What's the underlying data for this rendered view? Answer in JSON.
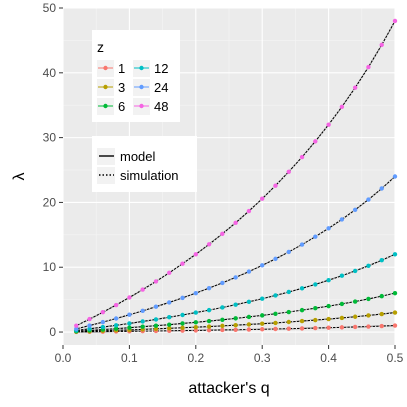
{
  "chart_data": {
    "type": "line",
    "xlabel": "attacker's q",
    "ylabel": "λ",
    "xlim": [
      0,
      0.5
    ],
    "ylim": [
      -2,
      50
    ],
    "x_ticks": [
      0.0,
      0.1,
      0.2,
      0.3,
      0.4,
      0.5
    ],
    "x_tick_labels": [
      "0.0",
      "0.1",
      "0.2",
      "0.3",
      "0.4",
      "0.5"
    ],
    "y_ticks": [
      0,
      10,
      20,
      30,
      40,
      50
    ],
    "y_tick_labels": [
      "0",
      "10",
      "20",
      "30",
      "40",
      "50"
    ],
    "grid": true,
    "x": [
      0.02,
      0.04,
      0.06,
      0.08,
      0.1,
      0.12,
      0.14,
      0.16,
      0.18,
      0.2,
      0.22,
      0.24,
      0.26,
      0.28,
      0.3,
      0.32,
      0.34,
      0.36,
      0.38,
      0.4,
      0.42,
      0.44,
      0.46,
      0.48,
      0.5
    ],
    "series": [
      {
        "name": "1",
        "color": "#F8766D",
        "values": [
          0.02,
          0.04,
          0.06,
          0.09,
          0.11,
          0.14,
          0.16,
          0.19,
          0.22,
          0.25,
          0.28,
          0.32,
          0.35,
          0.39,
          0.43,
          0.47,
          0.52,
          0.56,
          0.61,
          0.67,
          0.72,
          0.79,
          0.85,
          0.92,
          1.0
        ]
      },
      {
        "name": "3",
        "color": "#B79F00",
        "values": [
          0.06,
          0.12,
          0.19,
          0.26,
          0.33,
          0.41,
          0.49,
          0.57,
          0.66,
          0.75,
          0.85,
          0.95,
          1.05,
          1.17,
          1.29,
          1.41,
          1.55,
          1.69,
          1.84,
          2.0,
          2.17,
          2.36,
          2.56,
          2.77,
          3.0
        ]
      },
      {
        "name": "6",
        "color": "#00BA38",
        "values": [
          0.12,
          0.25,
          0.38,
          0.52,
          0.67,
          0.82,
          0.98,
          1.14,
          1.32,
          1.5,
          1.69,
          1.89,
          2.11,
          2.33,
          2.57,
          2.82,
          3.09,
          3.38,
          3.68,
          4.0,
          4.34,
          4.71,
          5.11,
          5.54,
          6.0
        ]
      },
      {
        "name": "12",
        "color": "#00BFC4",
        "values": [
          0.24,
          0.5,
          0.77,
          1.04,
          1.33,
          1.64,
          1.95,
          2.29,
          2.63,
          3.0,
          3.38,
          3.79,
          4.22,
          4.67,
          5.14,
          5.65,
          6.18,
          6.75,
          7.35,
          8.0,
          8.69,
          9.43,
          10.22,
          11.08,
          12.0
        ]
      },
      {
        "name": "24",
        "color": "#619CFF",
        "values": [
          0.49,
          1.0,
          1.53,
          2.09,
          2.67,
          3.27,
          3.91,
          4.57,
          5.27,
          6.0,
          6.77,
          7.58,
          8.43,
          9.33,
          10.29,
          11.29,
          12.36,
          13.5,
          14.71,
          16.0,
          17.38,
          18.86,
          20.44,
          22.15,
          24.0
        ]
      },
      {
        "name": "48",
        "color": "#F564E3",
        "values": [
          0.98,
          2.0,
          3.06,
          4.17,
          5.33,
          6.55,
          7.81,
          9.14,
          10.54,
          12.0,
          13.54,
          15.16,
          16.86,
          18.67,
          20.57,
          22.59,
          24.73,
          27.0,
          29.42,
          32.0,
          34.76,
          37.71,
          40.89,
          44.31,
          48.0
        ]
      }
    ],
    "legend_color": {
      "title": "z",
      "placement": "top-left",
      "entries": [
        "1",
        "3",
        "6",
        "12",
        "24",
        "48"
      ]
    },
    "legend_linetype": {
      "placement": "upper-left",
      "entries": [
        {
          "label": "model",
          "style": "solid"
        },
        {
          "label": "simulation",
          "style": "dotted"
        }
      ]
    },
    "style": {
      "panel_bg": "#EBEBEB",
      "grid_major": "#FFFFFF",
      "grid_minor": "#F5F5F5",
      "model_line_color": "#000000"
    }
  }
}
